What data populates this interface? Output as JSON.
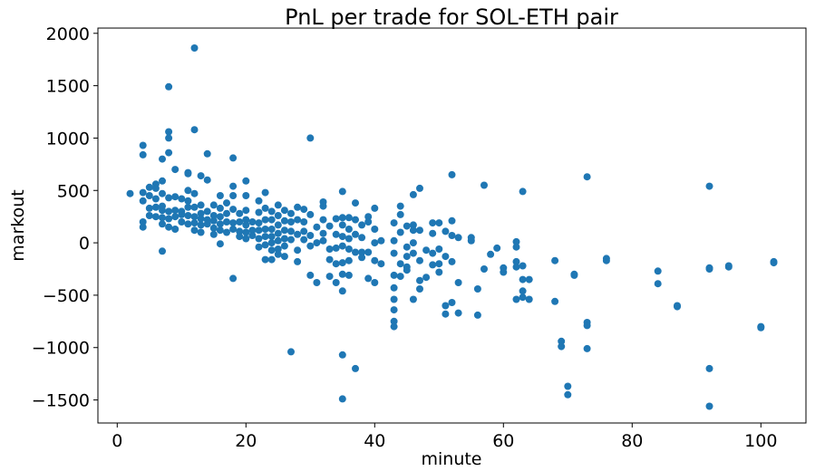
{
  "chart_data": {
    "type": "scatter",
    "title": "PnL per trade for SOL-ETH pair",
    "xlabel": "minute",
    "ylabel": "markout",
    "xlim": [
      -3,
      107
    ],
    "ylim": [
      -1720,
      2050
    ],
    "xticks": [
      0,
      20,
      40,
      60,
      80,
      100
    ],
    "yticks": [
      -1500,
      -1000,
      -500,
      0,
      500,
      1000,
      1500,
      2000
    ],
    "xtick_labels": [
      "0",
      "20",
      "40",
      "60",
      "80",
      "100"
    ],
    "ytick_labels": [
      "−1500",
      "−1000",
      "−500",
      "0",
      "500",
      "1000",
      "1500",
      "2000"
    ],
    "grid": false,
    "color": "#1f77b4",
    "points": [
      [
        2,
        470
      ],
      [
        4,
        930
      ],
      [
        4,
        840
      ],
      [
        4,
        480
      ],
      [
        4,
        400
      ],
      [
        4,
        200
      ],
      [
        4,
        150
      ],
      [
        5,
        530
      ],
      [
        5,
        450
      ],
      [
        5,
        330
      ],
      [
        5,
        260
      ],
      [
        6,
        560
      ],
      [
        6,
        520
      ],
      [
        6,
        420
      ],
      [
        6,
        340
      ],
      [
        6,
        250
      ],
      [
        7,
        470
      ],
      [
        7,
        350
      ],
      [
        7,
        310
      ],
      [
        7,
        240
      ],
      [
        7,
        180
      ],
      [
        7,
        590
      ],
      [
        7,
        800
      ],
      [
        7,
        -80
      ],
      [
        8,
        1490
      ],
      [
        8,
        1060
      ],
      [
        8,
        1000
      ],
      [
        8,
        860
      ],
      [
        8,
        430
      ],
      [
        8,
        300
      ],
      [
        8,
        230
      ],
      [
        8,
        150
      ],
      [
        9,
        700
      ],
      [
        9,
        440
      ],
      [
        9,
        310
      ],
      [
        9,
        250
      ],
      [
        9,
        130
      ],
      [
        10,
        420
      ],
      [
        10,
        300
      ],
      [
        10,
        270
      ],
      [
        10,
        200
      ],
      [
        11,
        670
      ],
      [
        11,
        500
      ],
      [
        11,
        400
      ],
      [
        11,
        340
      ],
      [
        11,
        260
      ],
      [
        11,
        180
      ],
      [
        11,
        660
      ],
      [
        12,
        1860
      ],
      [
        12,
        1080
      ],
      [
        12,
        470
      ],
      [
        12,
        340
      ],
      [
        12,
        250
      ],
      [
        12,
        190
      ],
      [
        12,
        120
      ],
      [
        13,
        640
      ],
      [
        13,
        360
      ],
      [
        13,
        280
      ],
      [
        13,
        230
      ],
      [
        13,
        170
      ],
      [
        13,
        100
      ],
      [
        14,
        850
      ],
      [
        14,
        600
      ],
      [
        14,
        300
      ],
      [
        14,
        220
      ],
      [
        14,
        180
      ],
      [
        15,
        360
      ],
      [
        15,
        260
      ],
      [
        15,
        210
      ],
      [
        15,
        140
      ],
      [
        15,
        80
      ],
      [
        16,
        450
      ],
      [
        16,
        330
      ],
      [
        16,
        250
      ],
      [
        16,
        180
      ],
      [
        16,
        120
      ],
      [
        16,
        -10
      ],
      [
        17,
        380
      ],
      [
        17,
        280
      ],
      [
        17,
        200
      ],
      [
        17,
        100
      ],
      [
        18,
        810
      ],
      [
        18,
        540
      ],
      [
        18,
        450
      ],
      [
        18,
        320
      ],
      [
        18,
        190
      ],
      [
        18,
        130
      ],
      [
        18,
        -340
      ],
      [
        19,
        280
      ],
      [
        19,
        200
      ],
      [
        19,
        110
      ],
      [
        19,
        60
      ],
      [
        20,
        590
      ],
      [
        20,
        450
      ],
      [
        20,
        310
      ],
      [
        20,
        220
      ],
      [
        20,
        170
      ],
      [
        20,
        100
      ],
      [
        20,
        40
      ],
      [
        21,
        200
      ],
      [
        21,
        120
      ],
      [
        21,
        70
      ],
      [
        22,
        400
      ],
      [
        22,
        290
      ],
      [
        22,
        190
      ],
      [
        22,
        120
      ],
      [
        22,
        40
      ],
      [
        22,
        -40
      ],
      [
        23,
        480
      ],
      [
        23,
        330
      ],
      [
        23,
        220
      ],
      [
        23,
        130
      ],
      [
        23,
        60
      ],
      [
        23,
        -20
      ],
      [
        23,
        -160
      ],
      [
        24,
        300
      ],
      [
        24,
        220
      ],
      [
        24,
        130
      ],
      [
        24,
        60
      ],
      [
        24,
        0
      ],
      [
        24,
        -70
      ],
      [
        24,
        -160
      ],
      [
        25,
        360
      ],
      [
        25,
        260
      ],
      [
        25,
        170
      ],
      [
        25,
        90
      ],
      [
        25,
        20
      ],
      [
        25,
        -60
      ],
      [
        25,
        -110
      ],
      [
        26,
        310
      ],
      [
        26,
        210
      ],
      [
        26,
        120
      ],
      [
        26,
        40
      ],
      [
        26,
        -30
      ],
      [
        26,
        -130
      ],
      [
        27,
        280
      ],
      [
        27,
        200
      ],
      [
        27,
        110
      ],
      [
        27,
        30
      ],
      [
        27,
        -1040
      ],
      [
        28,
        340
      ],
      [
        28,
        220
      ],
      [
        28,
        80
      ],
      [
        28,
        -70
      ],
      [
        28,
        -180
      ],
      [
        29,
        320
      ],
      [
        29,
        200
      ],
      [
        29,
        110
      ],
      [
        29,
        30
      ],
      [
        30,
        1000
      ],
      [
        30,
        270
      ],
      [
        30,
        70
      ],
      [
        30,
        -30
      ],
      [
        30,
        -310
      ],
      [
        31,
        150
      ],
      [
        31,
        0
      ],
      [
        31,
        -380
      ],
      [
        32,
        390
      ],
      [
        32,
        350
      ],
      [
        32,
        220
      ],
      [
        32,
        90
      ],
      [
        32,
        20
      ],
      [
        33,
        160
      ],
      [
        33,
        -60
      ],
      [
        33,
        -160
      ],
      [
        33,
        -320
      ],
      [
        34,
        230
      ],
      [
        34,
        80
      ],
      [
        34,
        -50
      ],
      [
        34,
        -200
      ],
      [
        34,
        -380
      ],
      [
        35,
        490
      ],
      [
        35,
        240
      ],
      [
        35,
        170
      ],
      [
        35,
        60
      ],
      [
        35,
        -30
      ],
      [
        35,
        -190
      ],
      [
        35,
        -300
      ],
      [
        35,
        -460
      ],
      [
        35,
        -1070
      ],
      [
        35,
        -1490
      ],
      [
        36,
        240
      ],
      [
        36,
        130
      ],
      [
        36,
        40
      ],
      [
        36,
        -60
      ],
      [
        36,
        -170
      ],
      [
        36,
        -310
      ],
      [
        37,
        380
      ],
      [
        37,
        220
      ],
      [
        37,
        80
      ],
      [
        37,
        -90
      ],
      [
        37,
        -1200
      ],
      [
        38,
        170
      ],
      [
        38,
        50
      ],
      [
        38,
        -90
      ],
      [
        38,
        -140
      ],
      [
        39,
        250
      ],
      [
        39,
        200
      ],
      [
        39,
        -90
      ],
      [
        39,
        -340
      ],
      [
        40,
        330
      ],
      [
        40,
        130
      ],
      [
        40,
        0
      ],
      [
        40,
        -170
      ],
      [
        40,
        -380
      ],
      [
        41,
        20
      ],
      [
        41,
        -200
      ],
      [
        43,
        190
      ],
      [
        43,
        20
      ],
      [
        43,
        -100
      ],
      [
        43,
        -310
      ],
      [
        43,
        -430
      ],
      [
        43,
        -540
      ],
      [
        43,
        -640
      ],
      [
        43,
        -750
      ],
      [
        43,
        -800
      ],
      [
        44,
        350
      ],
      [
        44,
        270
      ],
      [
        44,
        100
      ],
      [
        44,
        -200
      ],
      [
        44,
        -320
      ],
      [
        45,
        160
      ],
      [
        45,
        -40
      ],
      [
        45,
        -130
      ],
      [
        45,
        -230
      ],
      [
        45,
        -260
      ],
      [
        46,
        460
      ],
      [
        46,
        170
      ],
      [
        46,
        120
      ],
      [
        46,
        0
      ],
      [
        46,
        -100
      ],
      [
        46,
        -540
      ],
      [
        47,
        520
      ],
      [
        47,
        120
      ],
      [
        47,
        -170
      ],
      [
        47,
        -360
      ],
      [
        47,
        -440
      ],
      [
        48,
        -70
      ],
      [
        48,
        -330
      ],
      [
        49,
        190
      ],
      [
        49,
        90
      ],
      [
        49,
        -100
      ],
      [
        49,
        -210
      ],
      [
        50,
        190
      ],
      [
        50,
        -60
      ],
      [
        50,
        -200
      ],
      [
        50,
        -280
      ],
      [
        51,
        110
      ],
      [
        51,
        -130
      ],
      [
        51,
        -600
      ],
      [
        51,
        -680
      ],
      [
        52,
        650
      ],
      [
        52,
        210
      ],
      [
        52,
        70
      ],
      [
        52,
        -180
      ],
      [
        52,
        -570
      ],
      [
        53,
        50
      ],
      [
        53,
        -380
      ],
      [
        53,
        -670
      ],
      [
        55,
        50
      ],
      [
        55,
        20
      ],
      [
        56,
        -440
      ],
      [
        56,
        -690
      ],
      [
        57,
        550
      ],
      [
        57,
        -250
      ],
      [
        58,
        -110
      ],
      [
        59,
        -50
      ],
      [
        60,
        -240
      ],
      [
        60,
        -280
      ],
      [
        62,
        10
      ],
      [
        62,
        -40
      ],
      [
        62,
        -180
      ],
      [
        62,
        -230
      ],
      [
        62,
        -540
      ],
      [
        63,
        490
      ],
      [
        63,
        -220
      ],
      [
        63,
        -350
      ],
      [
        63,
        -460
      ],
      [
        63,
        -520
      ],
      [
        64,
        -350
      ],
      [
        64,
        -540
      ],
      [
        68,
        -170
      ],
      [
        68,
        -560
      ],
      [
        69,
        -940
      ],
      [
        69,
        -990
      ],
      [
        70,
        -1370
      ],
      [
        70,
        -1450
      ],
      [
        71,
        -300
      ],
      [
        71,
        -310
      ],
      [
        73,
        630
      ],
      [
        73,
        -760
      ],
      [
        73,
        -790
      ],
      [
        73,
        -1010
      ],
      [
        76,
        -150
      ],
      [
        76,
        -170
      ],
      [
        84,
        -270
      ],
      [
        84,
        -390
      ],
      [
        87,
        -600
      ],
      [
        87,
        -610
      ],
      [
        92,
        540
      ],
      [
        92,
        -240
      ],
      [
        92,
        -250
      ],
      [
        92,
        -1200
      ],
      [
        92,
        -1560
      ],
      [
        95,
        -220
      ],
      [
        95,
        -230
      ],
      [
        100,
        -800
      ],
      [
        100,
        -810
      ],
      [
        102,
        -180
      ],
      [
        102,
        -190
      ]
    ]
  }
}
